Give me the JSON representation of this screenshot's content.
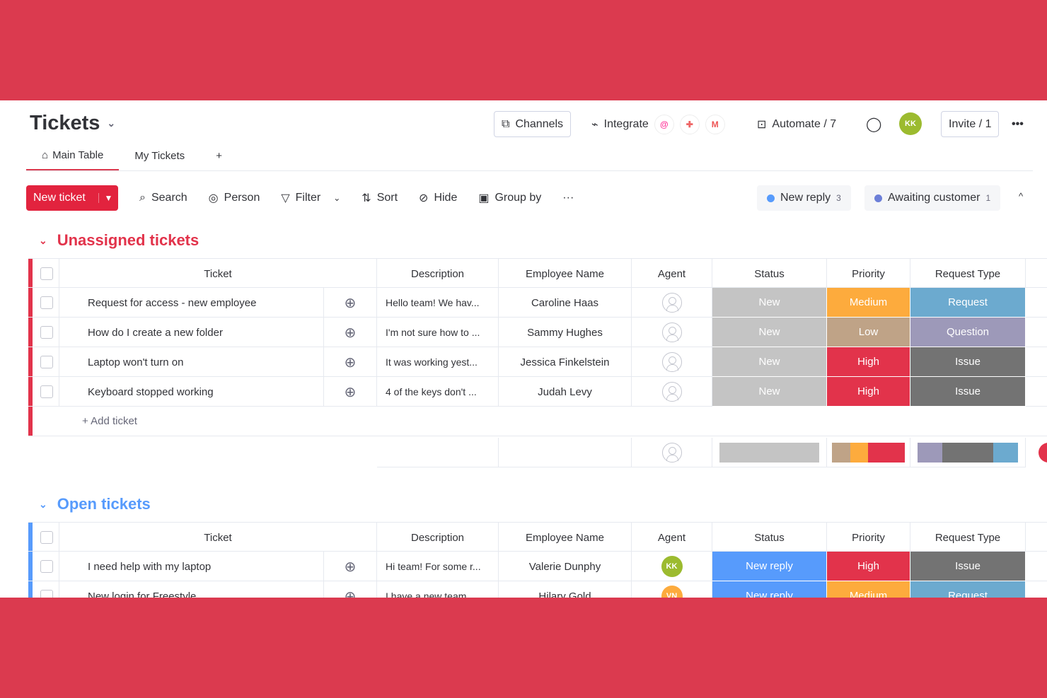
{
  "header": {
    "title": "Tickets",
    "channels": "Channels",
    "integrate": "Integrate",
    "integrations": [
      "@",
      "✚",
      "M"
    ],
    "automate": "Automate / 7",
    "avatar": "KK",
    "invite": "Invite / 1",
    "more": "•••"
  },
  "tabs": [
    {
      "label": "Main Table"
    },
    {
      "label": "My Tickets"
    },
    {
      "label": "+"
    }
  ],
  "toolbar": {
    "new_ticket": "New ticket",
    "search": "Search",
    "person": "Person",
    "filter": "Filter",
    "sort": "Sort",
    "hide": "Hide",
    "group_by": "Group by",
    "more": "···"
  },
  "filters": [
    {
      "label": "New reply",
      "count": "3",
      "color": "#579BFC"
    },
    {
      "label": "Awaiting customer",
      "count": "1",
      "color": "#6C7FD8"
    }
  ],
  "columns": [
    "Ticket",
    "Description",
    "Employee Name",
    "Agent",
    "Status",
    "Priority",
    "Request Type"
  ],
  "colors": {
    "New": "#C4C4C4",
    "New reply": "#579BFC",
    "Medium": "#FDAB3D",
    "Low": "#BFA387",
    "High": "#E2334B",
    "Request": "#6CAACF",
    "Question": "#9D99B9",
    "Issue": "#737373",
    "accent": "#DB3A4F"
  },
  "groups": [
    {
      "title": "Unassigned tickets",
      "color": "#E2334B",
      "add_label": "+ Add ticket",
      "rows": [
        {
          "ticket": "Request for access - new employee",
          "description": "Hello team! We hav...",
          "employee": "Caroline Haas",
          "agent": "",
          "status": "New",
          "priority": "Medium",
          "type": "Request"
        },
        {
          "ticket": "How do I create a new folder",
          "description": "I'm not sure how to ...",
          "employee": "Sammy Hughes",
          "agent": "",
          "status": "New",
          "priority": "Low",
          "type": "Question"
        },
        {
          "ticket": "Laptop won't turn on",
          "description": "It was working yest...",
          "employee": "Jessica Finkelstein",
          "agent": "",
          "status": "New",
          "priority": "High",
          "type": "Issue"
        },
        {
          "ticket": "Keyboard stopped working",
          "description": "4 of the keys don't ...",
          "employee": "Judah Levy",
          "agent": "",
          "status": "New",
          "priority": "High",
          "type": "Issue"
        }
      ]
    },
    {
      "title": "Open tickets",
      "color": "#579BFC",
      "rows": [
        {
          "ticket": "I need help with my laptop",
          "description": "Hi team! For some r...",
          "employee": "Valerie Dunphy",
          "agent": "KK",
          "agent_color": "#9CBB2F",
          "status": "New reply",
          "priority": "High",
          "type": "Issue"
        },
        {
          "ticket": "New login for Freestyle",
          "description": "I have a new team ...",
          "employee": "Hilary Gold",
          "agent": "VN",
          "agent_color": "#FDAB3D",
          "status": "New reply",
          "priority": "Medium",
          "type": "Request"
        }
      ]
    }
  ]
}
